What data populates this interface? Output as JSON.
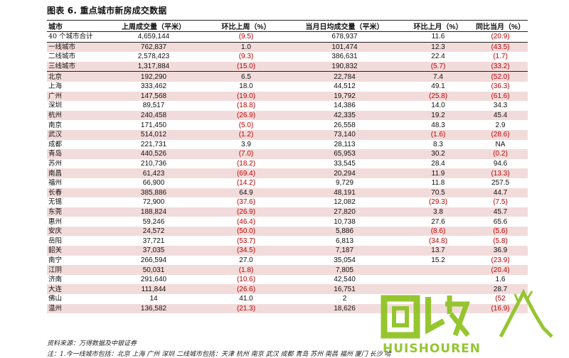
{
  "title": "图表 6. 重点城市新房成交数据",
  "columns": [
    "城市",
    "上周成交量（平米）",
    "环比上周（%）",
    "当月日均成交量（平米）",
    "环比上月（%）",
    "同比当月（%）"
  ],
  "rows": [
    {
      "city": "40 个城市合计",
      "c1": "4,659,144",
      "c2": "(9.5)",
      "c3": "678,937",
      "c4": "11.6",
      "c5": "(20.9)"
    },
    {
      "city": "一线城市",
      "c1": "762,837",
      "c2": "1.0",
      "c3": "101,474",
      "c4": "12.3",
      "c5": "(43.5)"
    },
    {
      "city": "二线城市",
      "c1": "2,578,423",
      "c2": "(9.3)",
      "c3": "386,631",
      "c4": "22.4",
      "c5": "(1.7)"
    },
    {
      "city": "三线城市",
      "c1": "1,317,884",
      "c2": "(15.0)",
      "c3": "190,832",
      "c4": "(5.7)",
      "c5": "(33.2)"
    },
    {
      "city": "北京",
      "c1": "192,290",
      "c2": "6.5",
      "c3": "22,784",
      "c4": "7.4",
      "c5": "(52.0)"
    },
    {
      "city": "上海",
      "c1": "333,462",
      "c2": "18.0",
      "c3": "44,512",
      "c4": "49.1",
      "c5": "(36.3)"
    },
    {
      "city": "广州",
      "c1": "147,568",
      "c2": "(19.0)",
      "c3": "19,792",
      "c4": "(25.8)",
      "c5": "(61.6)"
    },
    {
      "city": "深圳",
      "c1": "89,517",
      "c2": "(18.8)",
      "c3": "14,386",
      "c4": "14.0",
      "c5": "34.3"
    },
    {
      "city": "杭州",
      "c1": "240,458",
      "c2": "(26.9)",
      "c3": "42,335",
      "c4": "19.2",
      "c5": "45.4"
    },
    {
      "city": "南京",
      "c1": "171,450",
      "c2": "(5.0)",
      "c3": "26,558",
      "c4": "48.3",
      "c5": "2.9"
    },
    {
      "city": "武汉",
      "c1": "514,012",
      "c2": "(1.2)",
      "c3": "73,140",
      "c4": "(1.6)",
      "c5": "(28.6)"
    },
    {
      "city": "成都",
      "c1": "221,731",
      "c2": "3.9",
      "c3": "28,113",
      "c4": "8.3",
      "c5": "NA"
    },
    {
      "city": "青岛",
      "c1": "440,526",
      "c2": "(7.0)",
      "c3": "65,953",
      "c4": "30.2",
      "c5": "(0.2)"
    },
    {
      "city": "苏州",
      "c1": "210,736",
      "c2": "(18.2)",
      "c3": "33,545",
      "c4": "28.4",
      "c5": "94.6"
    },
    {
      "city": "南昌",
      "c1": "61,423",
      "c2": "(69.4)",
      "c3": "20,294",
      "c4": "11.9",
      "c5": "(13.3)"
    },
    {
      "city": "福州",
      "c1": "66,900",
      "c2": "(14.2)",
      "c3": "9,729",
      "c4": "11.8",
      "c5": "257.5"
    },
    {
      "city": "长春",
      "c1": "385,886",
      "c2": "64.9",
      "c3": "48,191",
      "c4": "70.5",
      "c5": "44.7"
    },
    {
      "city": "无锡",
      "c1": "72,900",
      "c2": "(37.6)",
      "c3": "12,082",
      "c4": "(29.3)",
      "c5": "(7.5)"
    },
    {
      "city": "东莞",
      "c1": "188,824",
      "c2": "(26.9)",
      "c3": "27,820",
      "c4": "3.8",
      "c5": "45.7"
    },
    {
      "city": "惠州",
      "c1": "59,246",
      "c2": "(46.4)",
      "c3": "10,738",
      "c4": "27.6",
      "c5": "65.6"
    },
    {
      "city": "安庆",
      "c1": "24,572",
      "c2": "(50.0)",
      "c3": "5,886",
      "c4": "(8.6)",
      "c5": "(5.6)"
    },
    {
      "city": "岳阳",
      "c1": "37,721",
      "c2": "(53.7)",
      "c3": "6,813",
      "c4": "(34.8)",
      "c5": "(5.8)"
    },
    {
      "city": "韶关",
      "c1": "37,035",
      "c2": "(34.5)",
      "c3": "7,187",
      "c4": "13.7",
      "c5": "36.9"
    },
    {
      "city": "南宁",
      "c1": "266,594",
      "c2": "27.0",
      "c3": "35,054",
      "c4": "15.2",
      "c5": "(23.9)"
    },
    {
      "city": "江阴",
      "c1": "50,031",
      "c2": "(1.8)",
      "c3": "7,805",
      "c4": "",
      "c5": "(20.4)"
    },
    {
      "city": "济南",
      "c1": "291,640",
      "c2": "(10.6)",
      "c3": "42,540",
      "c4": "",
      "c5": "1.6"
    },
    {
      "city": "大连",
      "c1": "111,844",
      "c2": "(26.6)",
      "c3": "16,751",
      "c4": "",
      "c5": "28.7"
    },
    {
      "city": "佛山",
      "c1": "14",
      "c2": "41.0",
      "c3": "2",
      "c4": "",
      "c5": "(52"
    },
    {
      "city": "温州",
      "c1": "136,582",
      "c2": "(21.3)",
      "c3": "18,626",
      "c4": "",
      "c5": "(16.9)"
    }
  ],
  "source": "资料来源：万得数据及中银证券",
  "note": "注：1.今一线城市包括：北京 上海 广州 深圳 二线城市包括：天津 杭州 南京 武汉 成都 青岛 苏州 南昌 福州 厦门 长沙 哈",
  "watermark": {
    "cn": "回收",
    "en": "HUISHOUREN",
    "color": "#8dc21f"
  },
  "colors": {
    "shade": "#f2dcdb",
    "negative": "#c00000"
  }
}
